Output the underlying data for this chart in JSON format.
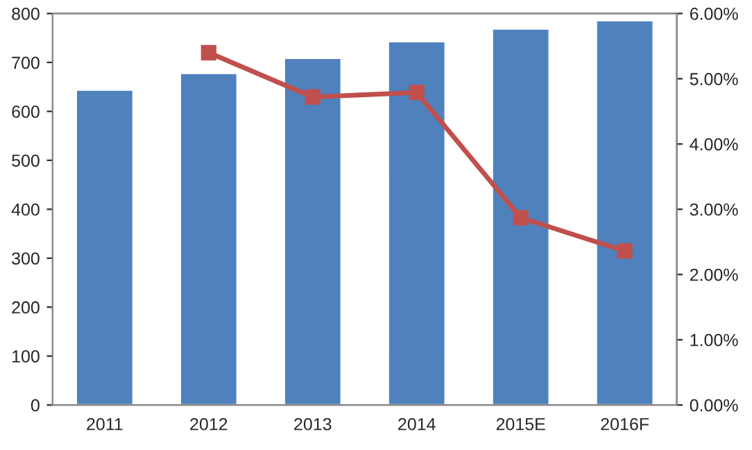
{
  "chart_data": {
    "type": "bar",
    "categories": [
      "2011",
      "2012",
      "2013",
      "2014",
      "2015E",
      "2016F"
    ],
    "series": [
      {
        "type": "bar",
        "color": "#4f81bd",
        "values": [
          644,
          678,
          709,
          743,
          769,
          786
        ]
      },
      {
        "type": "line",
        "axis": "y2",
        "color": "#c0504d",
        "marker": "square",
        "values": [
          null,
          5.4,
          4.72,
          4.79,
          2.87,
          2.36
        ]
      }
    ],
    "ylim": [
      0,
      800
    ],
    "yticks": [
      0,
      100,
      200,
      300,
      400,
      500,
      600,
      700,
      800
    ],
    "y2lim": [
      0,
      6
    ],
    "y2ticks": [
      {
        "value": 0,
        "label": "0.00%"
      },
      {
        "value": 1,
        "label": "1.00%"
      },
      {
        "value": 2,
        "label": "2.00%"
      },
      {
        "value": 3,
        "label": "3.00%"
      },
      {
        "value": 4,
        "label": "4.00%"
      },
      {
        "value": 5,
        "label": "5.00%"
      },
      {
        "value": 6,
        "label": "6.00%"
      }
    ],
    "grid": false,
    "legend": false
  }
}
